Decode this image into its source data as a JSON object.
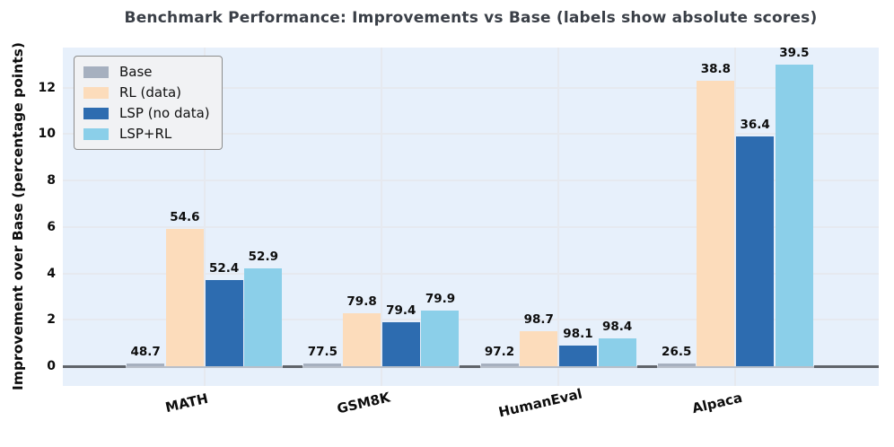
{
  "title": "Benchmark Performance: Improvements vs Base (labels show absolute scores)",
  "y_axis": {
    "label": "Improvement over Base (percentage points)",
    "ticks": [
      0,
      2,
      4,
      6,
      8,
      10,
      12
    ]
  },
  "legend": {
    "position": "upper left",
    "items": [
      {
        "label": "Base",
        "color": "#A6B0BF"
      },
      {
        "label": "RL (data)",
        "color": "#FCDCBB"
      },
      {
        "label": "LSP (no data)",
        "color": "#2D6CB0"
      },
      {
        "label": "LSP+RL",
        "color": "#8BCFE9"
      }
    ]
  },
  "chart_data": {
    "type": "bar",
    "title": "Benchmark Performance: Improvements vs Base (labels show absolute scores)",
    "xlabel": "",
    "ylabel": "Improvement over Base (percentage points)",
    "categories": [
      "MATH",
      "GSM8K",
      "HumanEval",
      "Alpaca"
    ],
    "series": [
      {
        "name": "Base",
        "color": "#A6B0BF",
        "improvements": [
          0.0,
          0.0,
          0.0,
          0.0
        ],
        "absolute_scores": [
          48.7,
          77.5,
          97.2,
          26.5
        ]
      },
      {
        "name": "RL (data)",
        "color": "#FCDCBB",
        "improvements": [
          5.9,
          2.3,
          1.5,
          12.3
        ],
        "absolute_scores": [
          54.6,
          79.8,
          98.7,
          38.8
        ]
      },
      {
        "name": "LSP (no data)",
        "color": "#2D6CB0",
        "improvements": [
          3.7,
          1.9,
          0.9,
          9.9
        ],
        "absolute_scores": [
          52.4,
          79.4,
          98.1,
          36.4
        ]
      },
      {
        "name": "LSP+RL",
        "color": "#8BCFE9",
        "improvements": [
          4.2,
          2.4,
          1.2,
          13.0
        ],
        "absolute_scores": [
          52.9,
          79.9,
          98.4,
          39.5
        ]
      }
    ],
    "bar_value_labels": "absolute_scores",
    "yticks": [
      0,
      2,
      4,
      6,
      8,
      10,
      12
    ],
    "ylim": [
      -0.85,
      13.73
    ],
    "xlim": [
      -0.8,
      3.81
    ],
    "bar_slot_units": 0.2217,
    "bar_width_units": 0.213,
    "grid": true,
    "legend_position": "upper left"
  },
  "colors": {
    "plot_bg": "#E7F0FB",
    "grid": "#E6E9EF",
    "zero_line": "#B8BFC9",
    "zero_line_dark": "#60646A",
    "title": "#3A3F47",
    "text": "#0D0D0D",
    "legend_bg": "#F1F2F4",
    "legend_border": "#8C8C8C"
  }
}
